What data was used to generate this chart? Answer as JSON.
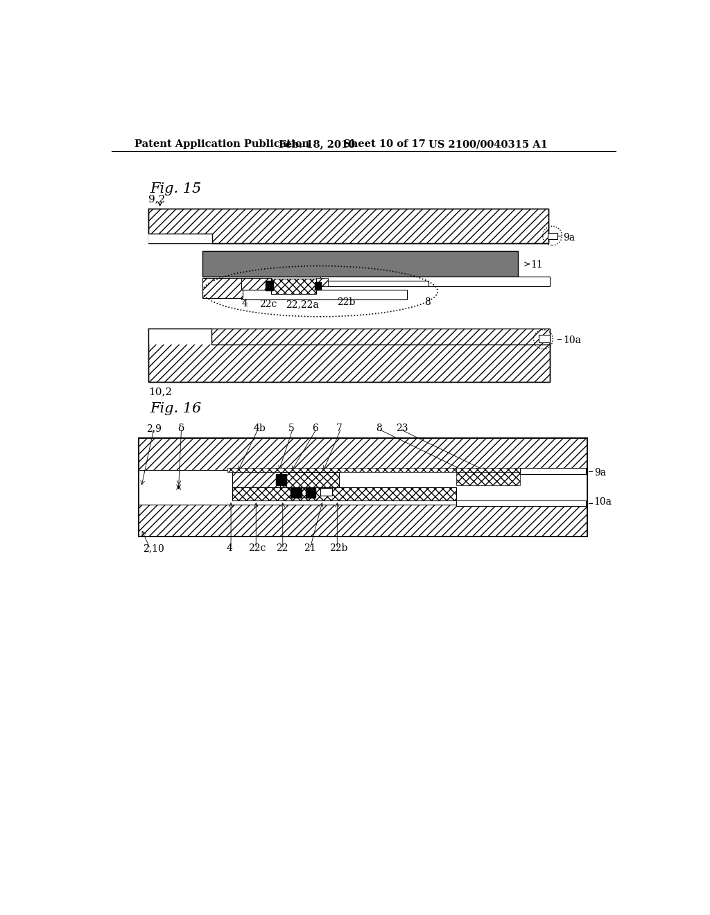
{
  "bg_color": "#ffffff",
  "header_text": "Patent Application Publication",
  "header_date": "Feb. 18, 2010",
  "header_sheet": "Sheet 10 of 17",
  "header_patent": "US 2100/0040315 A1",
  "fig15_label": "Fig. 15",
  "fig16_label": "Fig. 16"
}
